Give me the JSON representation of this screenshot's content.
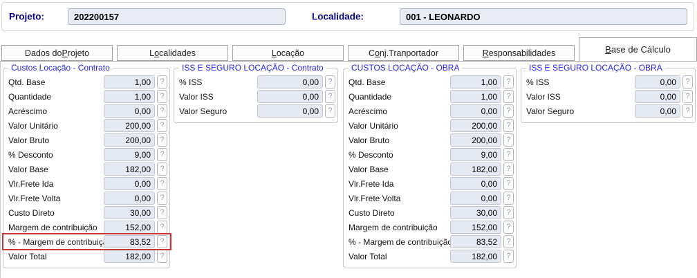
{
  "header": {
    "projeto_label": "Projeto:",
    "projeto_value": "202200157",
    "localidade_label": "Localidade:",
    "localidade_value": "001 - LEONARDO"
  },
  "tabs": [
    {
      "pre": "Dados do ",
      "key": "P",
      "post": "rojeto",
      "active": false
    },
    {
      "pre": "L",
      "key": "o",
      "post": "calidades",
      "active": false
    },
    {
      "pre": "",
      "key": "L",
      "post": "ocação",
      "active": false
    },
    {
      "pre": "C",
      "key": "o",
      "post": "nj.Tranportador",
      "active": false
    },
    {
      "pre": "",
      "key": "R",
      "post": "esponsabilidades",
      "active": false
    },
    {
      "pre": "",
      "key": "B",
      "post": "ase de Cálculo",
      "active": true
    }
  ],
  "help_button_label": "?",
  "groups": [
    {
      "title": "Custos Locação - Contrato",
      "fields": [
        {
          "label": "Qtd. Base",
          "value": "1,00",
          "highlighted": false
        },
        {
          "label": "Quantidade",
          "value": "1,00",
          "highlighted": false
        },
        {
          "label": "Acréscimo",
          "value": "0,00",
          "highlighted": false
        },
        {
          "label": "Valor Unitário",
          "value": "200,00",
          "highlighted": false
        },
        {
          "label": "Valor Bruto",
          "value": "200,00",
          "highlighted": false
        },
        {
          "label": "% Desconto",
          "value": "9,00",
          "highlighted": false
        },
        {
          "label": "Valor Base",
          "value": "182,00",
          "highlighted": false
        },
        {
          "label": "Vlr.Frete Ida",
          "value": "0,00",
          "highlighted": false
        },
        {
          "label": "Vlr.Frete Volta",
          "value": "0,00",
          "highlighted": false
        },
        {
          "label": "Custo Direto",
          "value": "30,00",
          "highlighted": false
        },
        {
          "label": "Margem de contribuição",
          "value": "152,00",
          "highlighted": false
        },
        {
          "label": "% - Margem de contribuição",
          "value": "83,52",
          "highlighted": true
        },
        {
          "label": "Valor Total",
          "value": "182,00",
          "highlighted": false
        }
      ]
    },
    {
      "title": "ISS E SEGURO LOCAÇÃO - Contrato",
      "fields": [
        {
          "label": "% ISS",
          "value": "0,00",
          "highlighted": false
        },
        {
          "label": "Valor ISS",
          "value": "0,00",
          "highlighted": false
        },
        {
          "label": "Valor Seguro",
          "value": "0,00",
          "highlighted": false
        }
      ]
    },
    {
      "title": "CUSTOS LOCAÇÃO - OBRA",
      "fields": [
        {
          "label": "Qtd. Base",
          "value": "1,00",
          "highlighted": false
        },
        {
          "label": "Quantidade",
          "value": "1,00",
          "highlighted": false
        },
        {
          "label": "Acréscimo",
          "value": "0,00",
          "highlighted": false
        },
        {
          "label": "Valor Unitário",
          "value": "200,00",
          "highlighted": false
        },
        {
          "label": "Valor Bruto",
          "value": "200,00",
          "highlighted": false
        },
        {
          "label": "% Desconto",
          "value": "9,00",
          "highlighted": false
        },
        {
          "label": "Valor Base",
          "value": "182,00",
          "highlighted": false
        },
        {
          "label": "Vlr.Frete Ida",
          "value": "0,00",
          "highlighted": false
        },
        {
          "label": "Vlr.Frete Volta",
          "value": "0,00",
          "highlighted": false
        },
        {
          "label": "Custo Direto",
          "value": "30,00",
          "highlighted": false
        },
        {
          "label": "Margem de contribuição",
          "value": "152,00",
          "highlighted": false
        },
        {
          "label": "% - Margem de contribuição",
          "value": "83,52",
          "highlighted": false
        },
        {
          "label": "Valor Total",
          "value": "182,00",
          "highlighted": false
        }
      ]
    },
    {
      "title": "ISS E SEGURO LOCAÇÃO - OBRA",
      "fields": [
        {
          "label": "% ISS",
          "value": "0,00",
          "highlighted": false
        },
        {
          "label": "Valor ISS",
          "value": "0,00",
          "highlighted": false
        },
        {
          "label": "Valor Seguro",
          "value": "0,00",
          "highlighted": false
        }
      ]
    }
  ],
  "colors": {
    "legend_blue": "#2424f0",
    "header_navy": "#00008c",
    "highlight_red": "#c63636",
    "field_input_bg": "#e5e9f2",
    "topbar_input_bg": "#e9ecf4"
  }
}
